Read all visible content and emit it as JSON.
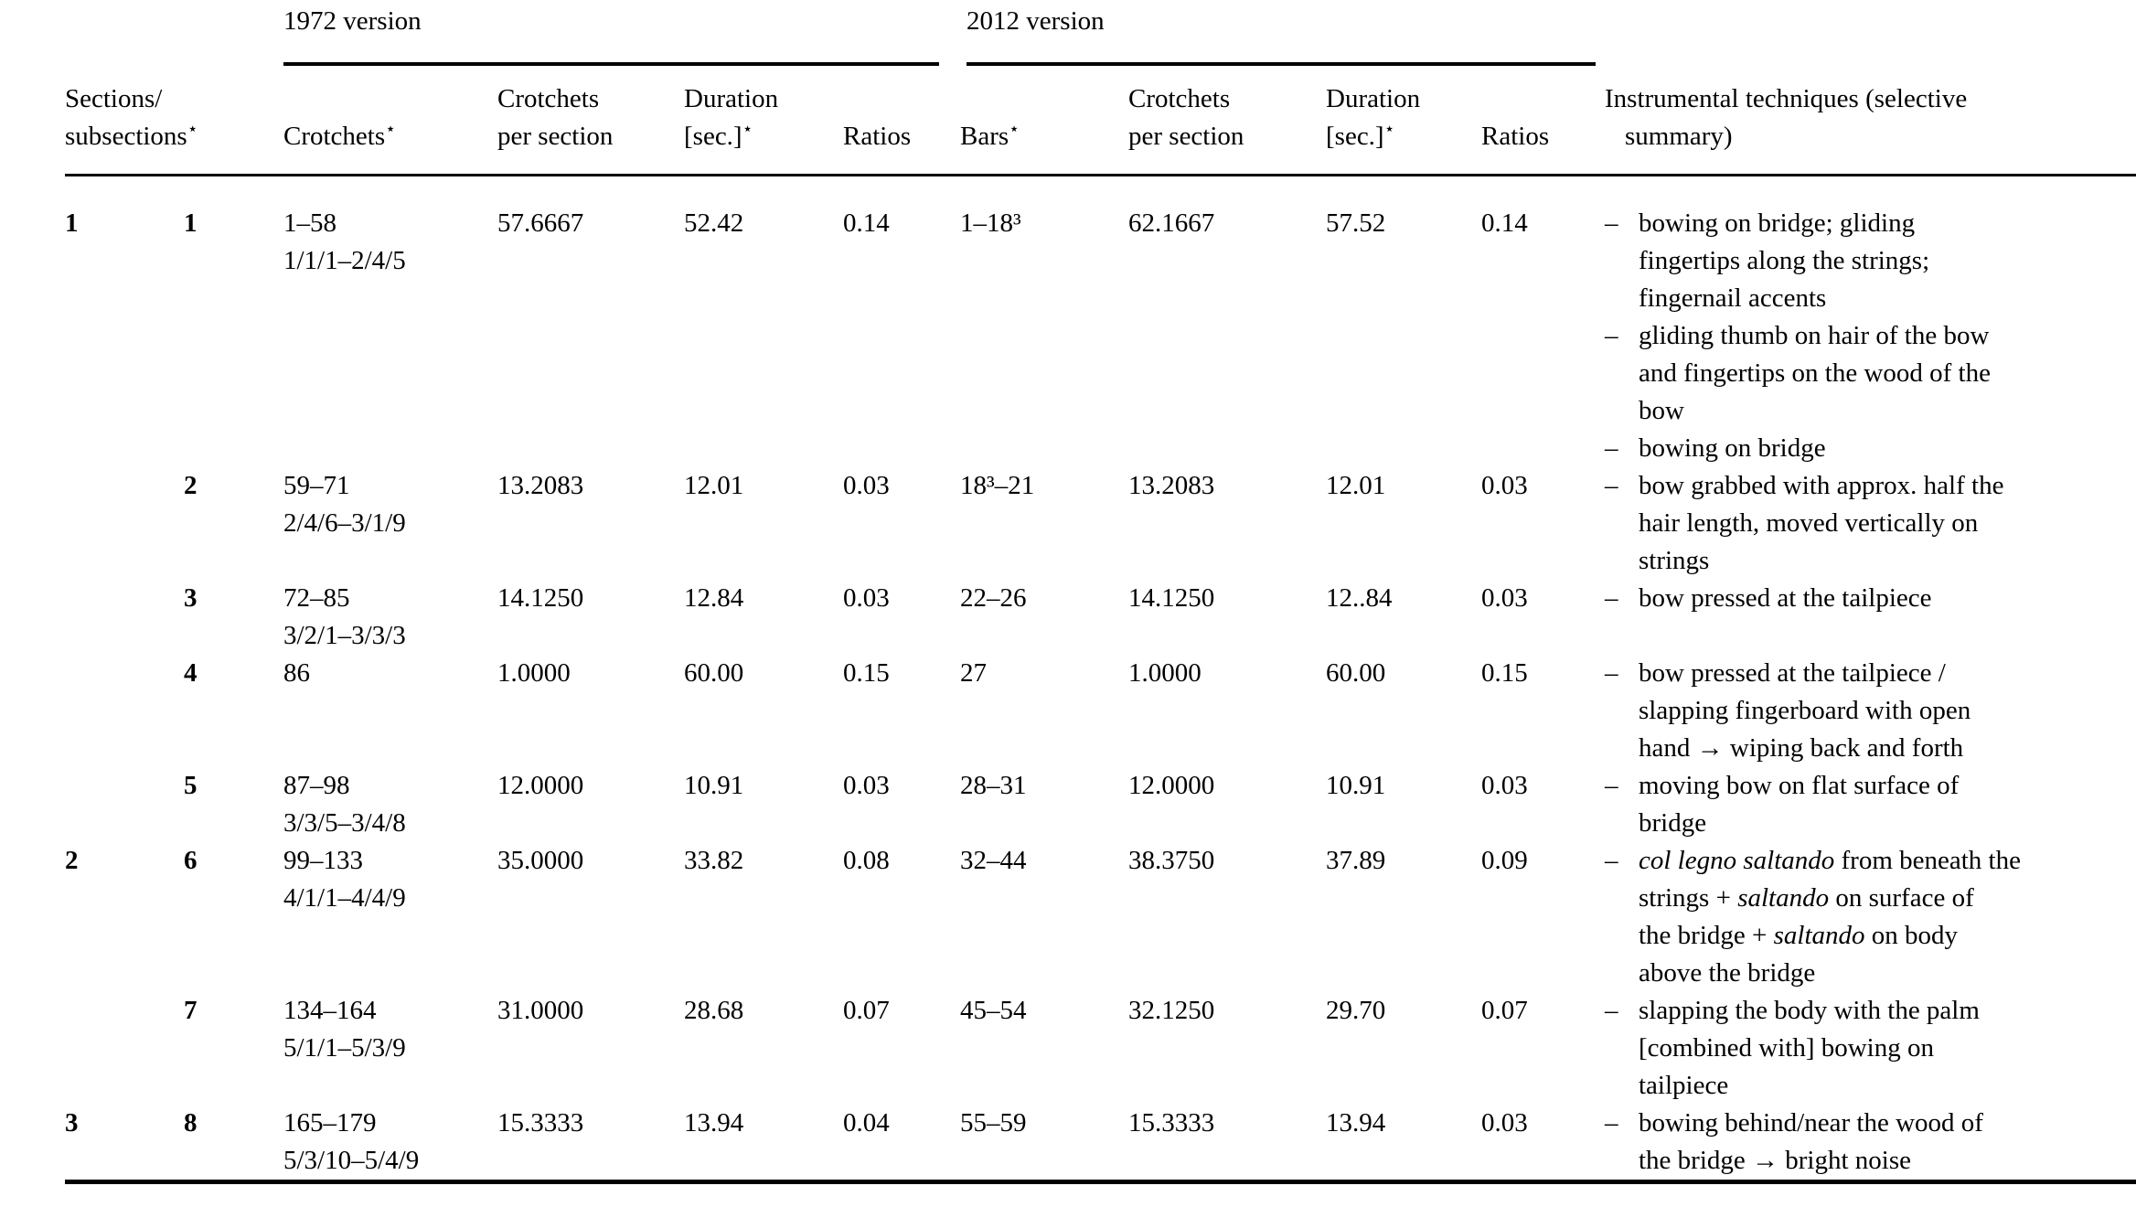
{
  "page": {
    "background": "#ffffff",
    "text_color": "#000000"
  },
  "table": {
    "star_symbol": "⋆",
    "group_headers": [
      {
        "id": "v1972",
        "label": "1972 version"
      },
      {
        "id": "v2012",
        "label": "2012 version"
      }
    ],
    "column_headers": [
      {
        "id": "sections",
        "colspan": 2,
        "star": true,
        "lines": [
          "Sections/",
          "subsections"
        ]
      },
      {
        "id": "crotchets-1972",
        "colspan": 1,
        "star": true,
        "lines": [
          "Crotchets"
        ]
      },
      {
        "id": "cps-1972",
        "colspan": 1,
        "star": false,
        "lines": [
          "Crotchets",
          "per section"
        ]
      },
      {
        "id": "duration-1972",
        "colspan": 1,
        "star": true,
        "lines": [
          "Duration",
          "[sec.]"
        ]
      },
      {
        "id": "ratios-1972",
        "colspan": 1,
        "star": false,
        "lines": [
          "Ratios"
        ]
      },
      {
        "id": "bars-2012",
        "colspan": 1,
        "star": true,
        "lines": [
          "Bars"
        ]
      },
      {
        "id": "cps-2012",
        "colspan": 1,
        "star": false,
        "lines": [
          "Crotchets",
          "per section"
        ]
      },
      {
        "id": "duration-2012",
        "colspan": 1,
        "star": true,
        "lines": [
          "Duration",
          "[sec.]"
        ]
      },
      {
        "id": "ratios-2012",
        "colspan": 1,
        "star": false,
        "lines": [
          "Ratios"
        ]
      },
      {
        "id": "techniques",
        "colspan": 1,
        "star": false,
        "lines": [
          "Instrumental techniques (selective",
          "summary)"
        ]
      }
    ],
    "rows": [
      {
        "section": "1",
        "subsection": "1",
        "crotchets": [
          "1–58",
          "1/1/1–2/4/5"
        ],
        "v1972": {
          "crotchets_per_section": "57.6667",
          "duration": "52.42",
          "ratio": "0.14"
        },
        "v2012": {
          "bars": "1–18³",
          "crotchets_per_section": "62.1667",
          "duration": "57.52",
          "ratio": "0.14"
        },
        "techniques": [
          {
            "lines": [
              [
                {
                  "text": "bowing on bridge; gliding"
                }
              ],
              [
                {
                  "text": "fingertips along the strings;"
                }
              ],
              [
                {
                  "text": "fingernail accents"
                }
              ]
            ]
          },
          {
            "lines": [
              [
                {
                  "text": "gliding thumb on hair of the bow"
                }
              ],
              [
                {
                  "text": "and fingertips on the wood of the"
                }
              ],
              [
                {
                  "text": "bow"
                }
              ]
            ]
          },
          {
            "lines": [
              [
                {
                  "text": "bowing on bridge"
                }
              ]
            ]
          }
        ]
      },
      {
        "section": "",
        "subsection": "2",
        "crotchets": [
          "59–71",
          "2/4/6–3/1/9"
        ],
        "v1972": {
          "crotchets_per_section": "13.2083",
          "duration": "12.01",
          "ratio": "0.03"
        },
        "v2012": {
          "bars": "18³–21",
          "crotchets_per_section": "13.2083",
          "duration": "12.01",
          "ratio": "0.03"
        },
        "techniques": [
          {
            "lines": [
              [
                {
                  "text": "bow grabbed with approx. half the"
                }
              ],
              [
                {
                  "text": "hair length, moved vertically on"
                }
              ],
              [
                {
                  "text": "strings"
                }
              ]
            ]
          }
        ]
      },
      {
        "section": "",
        "subsection": "3",
        "crotchets": [
          "72–85",
          "3/2/1–3/3/3"
        ],
        "v1972": {
          "crotchets_per_section": "14.1250",
          "duration": "12.84",
          "ratio": "0.03"
        },
        "v2012": {
          "bars": "22–26",
          "crotchets_per_section": "14.1250",
          "duration": "12..84",
          "ratio": "0.03"
        },
        "techniques": [
          {
            "lines": [
              [
                {
                  "text": "bow pressed at the tailpiece"
                }
              ]
            ]
          }
        ]
      },
      {
        "section": "",
        "subsection": "4",
        "crotchets": [
          "86"
        ],
        "v1972": {
          "crotchets_per_section": "1.0000",
          "duration": "60.00",
          "ratio": "0.15"
        },
        "v2012": {
          "bars": "27",
          "crotchets_per_section": "1.0000",
          "duration": "60.00",
          "ratio": "0.15"
        },
        "techniques": [
          {
            "lines": [
              [
                {
                  "text": "bow pressed at the tailpiece /"
                }
              ],
              [
                {
                  "text": "slapping fingerboard with open"
                }
              ],
              [
                {
                  "text": "hand → wiping back and forth"
                }
              ]
            ]
          }
        ]
      },
      {
        "section": "",
        "subsection": "5",
        "crotchets": [
          "87–98",
          "3/3/5–3/4/8"
        ],
        "v1972": {
          "crotchets_per_section": "12.0000",
          "duration": "10.91",
          "ratio": "0.03"
        },
        "v2012": {
          "bars": "28–31",
          "crotchets_per_section": "12.0000",
          "duration": "10.91",
          "ratio": "0.03"
        },
        "techniques": [
          {
            "lines": [
              [
                {
                  "text": "moving bow on flat surface of"
                }
              ],
              [
                {
                  "text": "bridge"
                }
              ]
            ]
          }
        ]
      },
      {
        "section": "2",
        "subsection": "6",
        "crotchets": [
          "99–133",
          "4/1/1–4/4/9"
        ],
        "v1972": {
          "crotchets_per_section": "35.0000",
          "duration": "33.82",
          "ratio": "0.08"
        },
        "v2012": {
          "bars": "32–44",
          "crotchets_per_section": "38.3750",
          "duration": "37.89",
          "ratio": "0.09"
        },
        "techniques": [
          {
            "lines": [
              [
                {
                  "text": "col legno saltando",
                  "italic": true
                },
                {
                  "text": " from beneath the"
                }
              ],
              [
                {
                  "text": "strings + "
                },
                {
                  "text": "saltando",
                  "italic": true
                },
                {
                  "text": " on surface of"
                }
              ],
              [
                {
                  "text": "the bridge + "
                },
                {
                  "text": "saltando",
                  "italic": true
                },
                {
                  "text": " on body"
                }
              ],
              [
                {
                  "text": "above the bridge"
                }
              ]
            ]
          }
        ]
      },
      {
        "section": "",
        "subsection": "7",
        "crotchets": [
          "134–164",
          "5/1/1–5/3/9"
        ],
        "v1972": {
          "crotchets_per_section": "31.0000",
          "duration": "28.68",
          "ratio": "0.07"
        },
        "v2012": {
          "bars": "45–54",
          "crotchets_per_section": "32.1250",
          "duration": "29.70",
          "ratio": "0.07"
        },
        "techniques": [
          {
            "lines": [
              [
                {
                  "text": "slapping the body with the palm"
                }
              ],
              [
                {
                  "text": "[combined with] bowing on"
                }
              ],
              [
                {
                  "text": "tailpiece"
                }
              ]
            ]
          }
        ]
      },
      {
        "section": "3",
        "subsection": "8",
        "crotchets": [
          "165–179",
          "5/3/10–5/4/9"
        ],
        "v1972": {
          "crotchets_per_section": "15.3333",
          "duration": "13.94",
          "ratio": "0.04"
        },
        "v2012": {
          "bars": "55–59",
          "crotchets_per_section": "15.3333",
          "duration": "13.94",
          "ratio": "0.03"
        },
        "techniques": [
          {
            "lines": [
              [
                {
                  "text": "bowing behind/near the wood of"
                }
              ],
              [
                {
                  "text": "the bridge → bright noise"
                }
              ]
            ]
          }
        ]
      }
    ]
  }
}
